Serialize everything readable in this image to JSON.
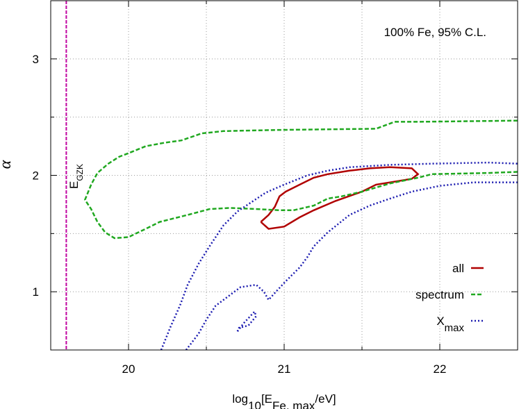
{
  "chart_data": {
    "type": "contour",
    "annotation": "100% Fe, 95% C.L.",
    "xlabel_parts": [
      {
        "text": "log"
      },
      {
        "text": "10",
        "sub": true
      },
      {
        "text": "[E"
      },
      {
        "text": "Fe, max",
        "sub": true
      },
      {
        "text": "/eV]"
      }
    ],
    "ylabel": "α",
    "xlim": [
      19.5,
      22.5
    ],
    "ylim": [
      0.5,
      3.5
    ],
    "xticks": [
      20,
      21,
      22
    ],
    "yticks": [
      1,
      2,
      3
    ],
    "minor_xticks": [
      20.5,
      21.5
    ],
    "minor_yticks": [
      1.5,
      2.5
    ],
    "grid": true,
    "legend": "lower right",
    "vline": {
      "x": 19.6,
      "color": "#c000a0",
      "label_parts": [
        {
          "text": "E"
        },
        {
          "text": "GZK",
          "sub": true
        }
      ]
    },
    "series": [
      {
        "name": "all",
        "color": "#b00000",
        "dash": "solid",
        "x": [
          20.85,
          20.9,
          21.0,
          21.1,
          21.19,
          21.33,
          21.5,
          21.59,
          21.73,
          21.82,
          21.86,
          21.82,
          21.68,
          21.55,
          21.42,
          21.28,
          21.19,
          21.1,
          21.01,
          20.97,
          20.94,
          20.9,
          20.85
        ],
        "y": [
          1.6,
          1.54,
          1.56,
          1.64,
          1.7,
          1.78,
          1.86,
          1.92,
          1.95,
          1.97,
          2.01,
          2.06,
          2.07,
          2.06,
          2.04,
          2.01,
          1.98,
          1.92,
          1.86,
          1.82,
          1.73,
          1.66,
          1.6
        ]
      },
      {
        "name": "spectrum",
        "color": "#20a820",
        "dash": "dashed",
        "x": [
          22.5,
          22.31,
          21.95,
          21.86,
          21.68,
          21.5,
          21.37,
          21.28,
          21.19,
          21.06,
          20.97,
          20.83,
          20.65,
          20.52,
          20.38,
          20.2,
          20.11,
          20.0,
          19.91,
          19.85,
          19.8,
          19.76,
          19.72,
          19.76,
          19.8,
          19.87,
          19.94,
          20.0,
          20.11,
          20.23,
          20.34,
          20.47,
          20.61,
          20.97,
          21.59,
          21.71,
          21.86,
          22.5
        ],
        "y": [
          2.03,
          2.02,
          2.01,
          1.98,
          1.93,
          1.86,
          1.82,
          1.8,
          1.74,
          1.7,
          1.7,
          1.71,
          1.72,
          1.71,
          1.66,
          1.6,
          1.54,
          1.47,
          1.46,
          1.51,
          1.6,
          1.71,
          1.79,
          1.92,
          2.02,
          2.1,
          2.16,
          2.19,
          2.25,
          2.28,
          2.3,
          2.36,
          2.38,
          2.39,
          2.4,
          2.46,
          2.46,
          2.47
        ]
      },
      {
        "name": "X",
        "name_subscript": "max",
        "color": "#1a1ab0",
        "dash": "dotted",
        "x": [
          20.21,
          20.27,
          20.33,
          20.38,
          20.45,
          20.52,
          20.61,
          20.7,
          20.79,
          20.88,
          21.0,
          21.15,
          21.28,
          21.42,
          21.68,
          21.95,
          22.31,
          22.5,
          null,
          20.37,
          20.45,
          20.5,
          20.56,
          20.65,
          20.72,
          20.82,
          20.87,
          20.9,
          20.94,
          21.01,
          21.1,
          21.15,
          21.19,
          21.28,
          21.42,
          21.55,
          21.68,
          21.82,
          22.0,
          22.22,
          22.4,
          22.5,
          null,
          20.7,
          20.74,
          20.81,
          20.82,
          20.77,
          20.71,
          20.7
        ],
        "y": [
          0.5,
          0.7,
          0.88,
          1.06,
          1.24,
          1.39,
          1.57,
          1.69,
          1.77,
          1.85,
          1.92,
          2.0,
          2.04,
          2.07,
          2.09,
          2.1,
          2.11,
          2.1,
          null,
          0.5,
          0.64,
          0.76,
          0.88,
          0.97,
          1.04,
          1.06,
          1.0,
          0.93,
          0.99,
          1.09,
          1.21,
          1.3,
          1.39,
          1.51,
          1.66,
          1.74,
          1.8,
          1.86,
          1.91,
          1.94,
          1.94,
          1.94,
          null,
          0.66,
          0.73,
          0.83,
          0.79,
          0.71,
          0.69,
          0.66
        ]
      }
    ]
  }
}
